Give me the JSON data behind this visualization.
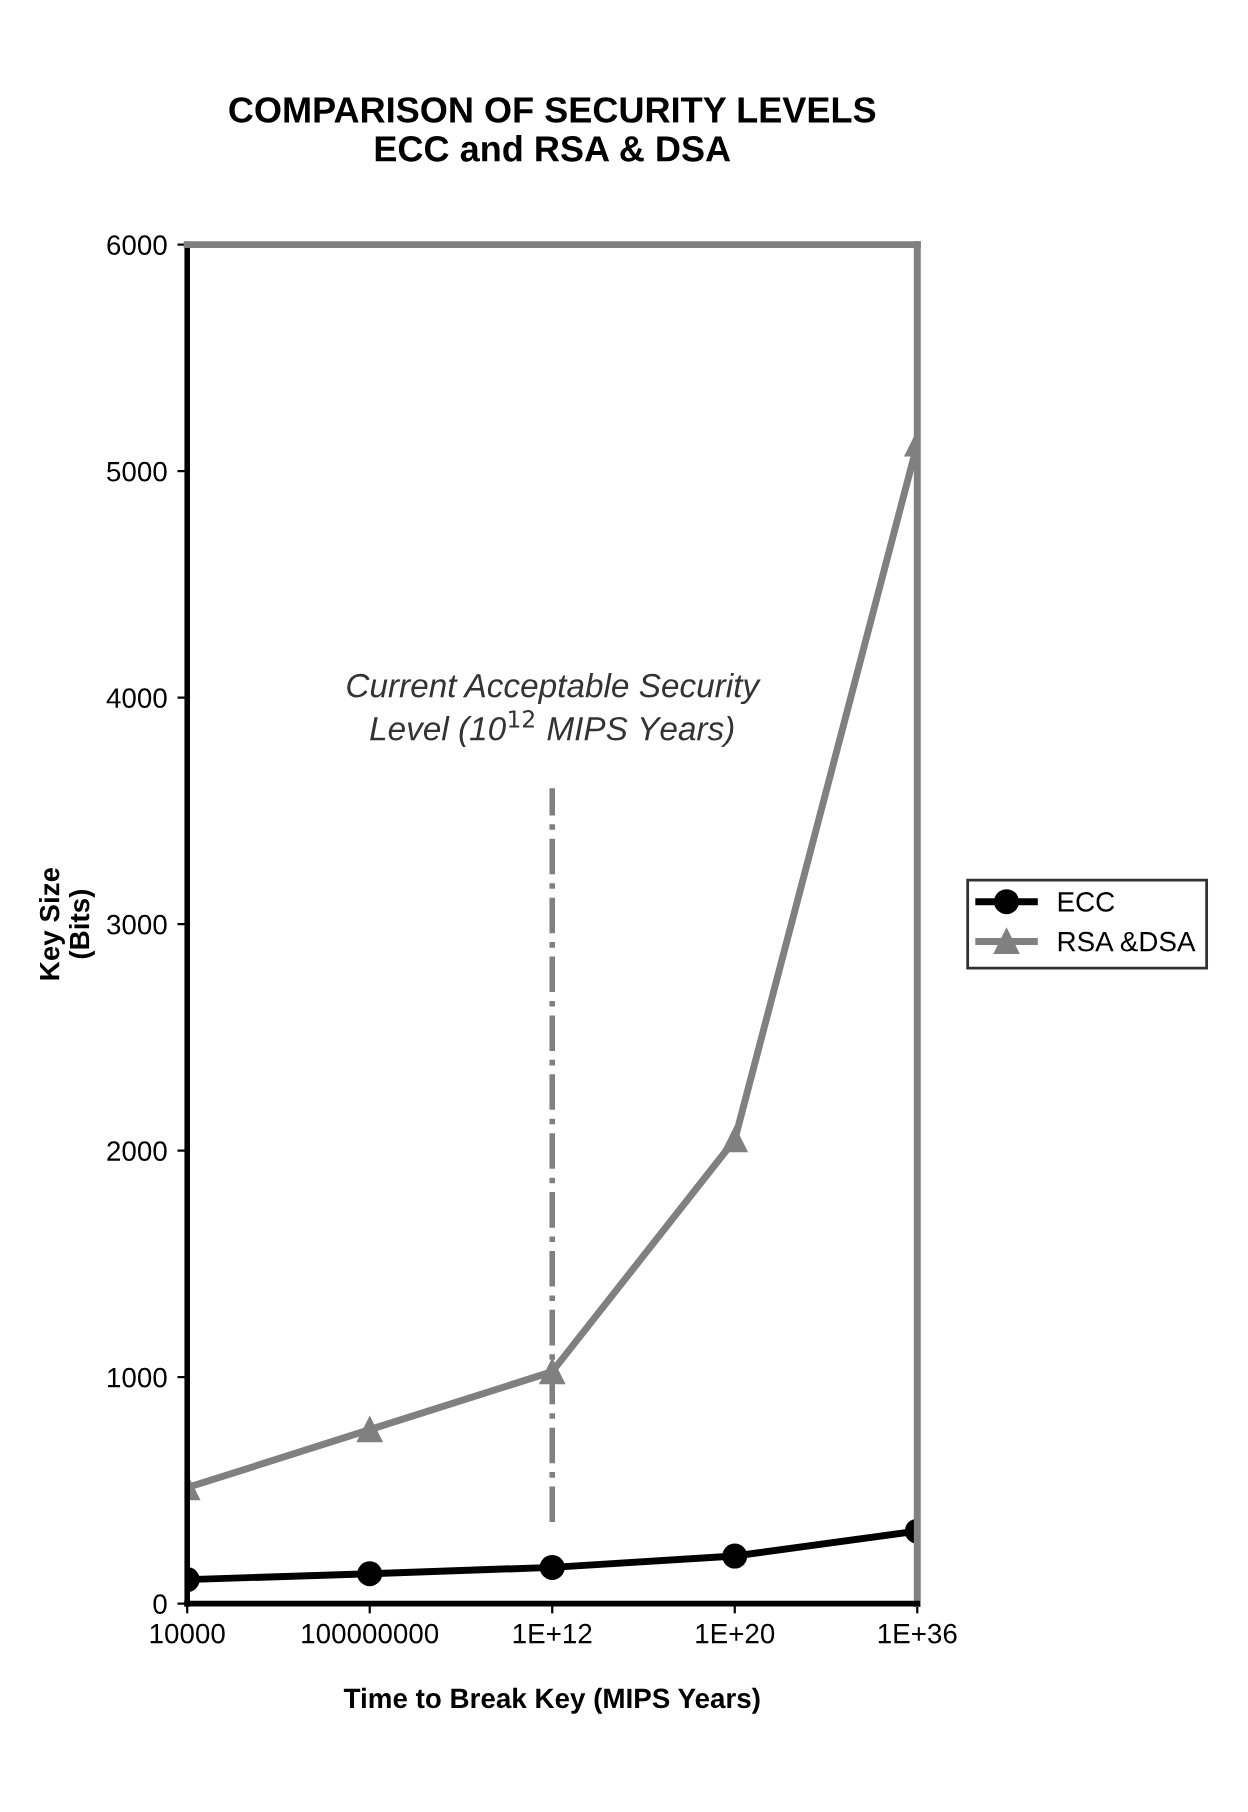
{
  "chart_data": {
    "type": "line",
    "title": "COMPARISON OF SECURITY LEVELS\nECC and RSA & DSA",
    "xlabel": "Time to Break Key (MIPS Years)",
    "ylabel": "Key Size\n(Bits)",
    "categories": [
      "10000",
      "100000000",
      "1E+12",
      "1E+20",
      "1E+36"
    ],
    "series": [
      {
        "name": "ECC",
        "color": "#000000",
        "marker": "circle",
        "values": [
          106,
          132,
          160,
          210,
          320
        ]
      },
      {
        "name": "RSA &DSA",
        "color": "#808080",
        "marker": "triangle",
        "values": [
          512,
          768,
          1024,
          2048,
          5120
        ]
      }
    ],
    "ylim": [
      0,
      6000
    ],
    "yticks": [
      0,
      1000,
      2000,
      3000,
      4000,
      5000,
      6000
    ],
    "grid": false,
    "legend": "right",
    "ref_lines": [
      {
        "axis": "x",
        "value": "1E+12",
        "label": "Current Acceptable Security\nLevel (10$^{12}$ MIPS Years)",
        "color": "#808080",
        "line_style": "dashdot"
      }
    ]
  }
}
